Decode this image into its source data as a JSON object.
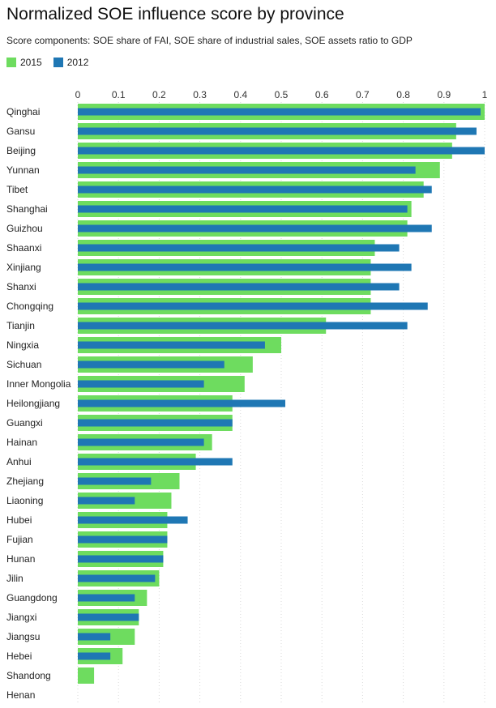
{
  "chart_data": {
    "type": "bar",
    "orientation": "horizontal",
    "title": "Normalized SOE influence score by province",
    "subtitle": "Score components: SOE share of FAI, SOE share of industrial sales, SOE assets ratio to GDP",
    "xlim": [
      0,
      1
    ],
    "ticks": [
      "0",
      "0.1",
      "0.2",
      "0.3",
      "0.4",
      "0.5",
      "0.6",
      "0.7",
      "0.8",
      "0.9",
      "1"
    ],
    "tick_values": [
      0,
      0.1,
      0.2,
      0.3,
      0.4,
      0.5,
      0.6,
      0.7,
      0.8,
      0.9,
      1
    ],
    "grid": true,
    "legend_position": "top-left",
    "categories": [
      "Qinghai",
      "Gansu",
      "Beijing",
      "Yunnan",
      "Tibet",
      "Shanghai",
      "Guizhou",
      "Shaanxi",
      "Xinjiang",
      "Shanxi",
      "Chongqing",
      "Tianjin",
      "Ningxia",
      "Sichuan",
      "Inner Mongolia",
      "Heilongjiang",
      "Guangxi",
      "Hainan",
      "Anhui",
      "Zhejiang",
      "Liaoning",
      "Hubei",
      "Fujian",
      "Hunan",
      "Jilin",
      "Guangdong",
      "Jiangxi",
      "Jiangsu",
      "Hebei",
      "Shandong",
      "Henan"
    ],
    "series": [
      {
        "name": "2015",
        "color": "#6edc5f",
        "values": [
          1.0,
          0.93,
          0.92,
          0.89,
          0.85,
          0.82,
          0.81,
          0.73,
          0.72,
          0.72,
          0.72,
          0.61,
          0.5,
          0.43,
          0.41,
          0.38,
          0.38,
          0.33,
          0.29,
          0.25,
          0.23,
          0.22,
          0.22,
          0.21,
          0.2,
          0.17,
          0.15,
          0.14,
          0.11,
          0.04,
          0.0
        ]
      },
      {
        "name": "2012",
        "color": "#1f77b4",
        "values": [
          0.99,
          0.98,
          1.0,
          0.83,
          0.87,
          0.81,
          0.87,
          0.79,
          0.82,
          0.79,
          0.86,
          0.81,
          0.46,
          0.36,
          0.31,
          0.51,
          0.38,
          0.31,
          0.38,
          0.18,
          0.14,
          0.27,
          0.22,
          0.21,
          0.19,
          0.14,
          0.15,
          0.08,
          0.08,
          0.0,
          0.0
        ]
      }
    ]
  }
}
